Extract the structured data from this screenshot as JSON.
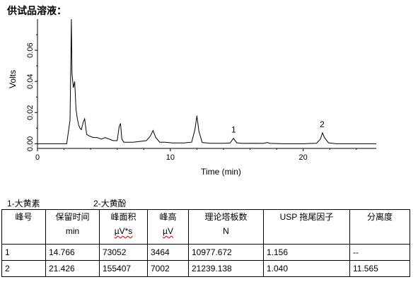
{
  "heading": "供试品溶液：",
  "chart_data": {
    "type": "line",
    "title": "",
    "xlabel": "Time (min)",
    "ylabel": "Volts",
    "xlim": [
      0,
      25.5
    ],
    "ylim": [
      -0.003,
      0.08
    ],
    "x_ticks": [
      0,
      10,
      20
    ],
    "y_ticks": [
      0.0,
      0.02,
      0.04,
      0.06
    ],
    "y_tick_labels": [
      "0.00",
      "0.02",
      "0.04",
      "0.06"
    ],
    "grid": false,
    "series": [
      {
        "x": [
          0,
          2.2,
          2.45,
          2.5,
          2.55,
          2.6,
          2.7,
          2.8,
          2.9,
          3.0,
          3.1,
          3.2,
          3.3,
          3.45,
          3.55,
          3.7,
          3.9,
          4.2,
          4.5,
          4.8,
          5.1,
          5.4,
          5.7,
          6.0,
          6.15,
          6.25,
          6.35,
          6.5,
          6.8,
          7.2,
          7.7,
          8.2,
          8.5,
          8.7,
          8.9,
          9.2,
          9.6,
          10.2,
          11.0,
          11.6,
          11.85,
          12.0,
          12.15,
          12.4,
          13.0,
          14.0,
          14.5,
          14.75,
          15.0,
          15.4,
          16.2,
          17.0,
          17.3,
          17.5,
          18.5,
          20.0,
          21.0,
          21.3,
          21.45,
          21.6,
          21.9,
          22.5,
          24.0,
          25.5
        ],
        "y": [
          0.0,
          0.0,
          0.015,
          0.048,
          0.08,
          0.045,
          0.036,
          0.04,
          0.022,
          0.016,
          0.012,
          0.01,
          0.009,
          0.014,
          0.016,
          0.006,
          0.005,
          0.004,
          0.004,
          0.003,
          0.004,
          0.003,
          0.002,
          0.002,
          0.011,
          0.013,
          0.003,
          0.001,
          0.001,
          0.001,
          0.0015,
          0.002,
          0.005,
          0.0085,
          0.004,
          0.001,
          0.001,
          0.0005,
          0.0005,
          0.001,
          0.009,
          0.018,
          0.008,
          0.0008,
          0.0003,
          0.0003,
          0.0005,
          0.0035,
          0.0006,
          0.0002,
          0.0003,
          0.0002,
          0.0008,
          0.0002,
          0.0,
          0.0,
          0.0003,
          0.003,
          0.007,
          0.004,
          0.0006,
          0.0,
          0.0,
          0.0
        ]
      }
    ],
    "peak_labels": [
      {
        "label": "1",
        "x": 14.766,
        "y": 0.0035
      },
      {
        "label": "2",
        "x": 21.426,
        "y": 0.007
      }
    ]
  },
  "compounds": [
    "1-大黄素",
    "2-大黄酚"
  ],
  "table": {
    "headers": [
      {
        "line1": "峰号",
        "line2": ""
      },
      {
        "line1": "保留时间",
        "line2": "min"
      },
      {
        "line1": "峰面积",
        "line2": "µV*s"
      },
      {
        "line1": "峰高",
        "line2": "µV"
      },
      {
        "line1": "理论塔板数",
        "line2": "N"
      },
      {
        "line1": "USP 拖尾因子",
        "line2": ""
      },
      {
        "line1": "分离度",
        "line2": ""
      }
    ],
    "rows": [
      [
        "1",
        "14.766",
        "73052",
        "3464",
        "10977.672",
        "1.156",
        "--"
      ],
      [
        "2",
        "21.426",
        "155407",
        "7002",
        "21239.138",
        "1.040",
        "11.565"
      ]
    ]
  }
}
